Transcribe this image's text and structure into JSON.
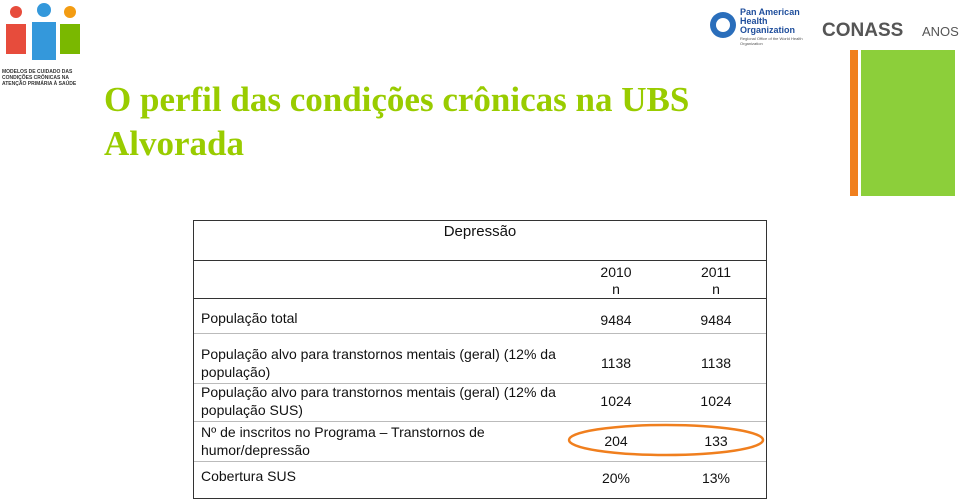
{
  "header": {
    "title": "O perfil das condições crônicas na UBS Alvorada",
    "logo_left": "MODELOS DE CUIDADO DAS CONDIÇÕES CRÔNICAS NA ATENÇÃO PRIMÁRIA À SAÚDE",
    "logo_paho": [
      "Pan American",
      "Health",
      "Organization"
    ],
    "logo_paho_sub": "Regional Office of the World Health Organization",
    "logo_conass": "CONASS",
    "logo_conass_years": "ANOS"
  },
  "table": {
    "caption": "Depressão",
    "columns": [
      {
        "year": "2010",
        "unit": "n"
      },
      {
        "year": "2011",
        "unit": "n"
      }
    ],
    "rows": [
      {
        "label": "População  total",
        "values": [
          "9484",
          "9484"
        ]
      },
      {
        "label": "População alvo para transtornos mentais (geral) (12% da população)",
        "values": [
          "1138",
          "1138"
        ]
      },
      {
        "label": "População alvo para transtornos mentais (geral) (12% da população SUS)",
        "values": [
          "1024",
          "1024"
        ]
      },
      {
        "label": "Nº de inscritos no Programa – Transtornos de humor/depressão",
        "values": [
          "204",
          "133"
        ]
      },
      {
        "label": "Cobertura SUS",
        "values": [
          "20%",
          "13%"
        ]
      }
    ]
  }
}
